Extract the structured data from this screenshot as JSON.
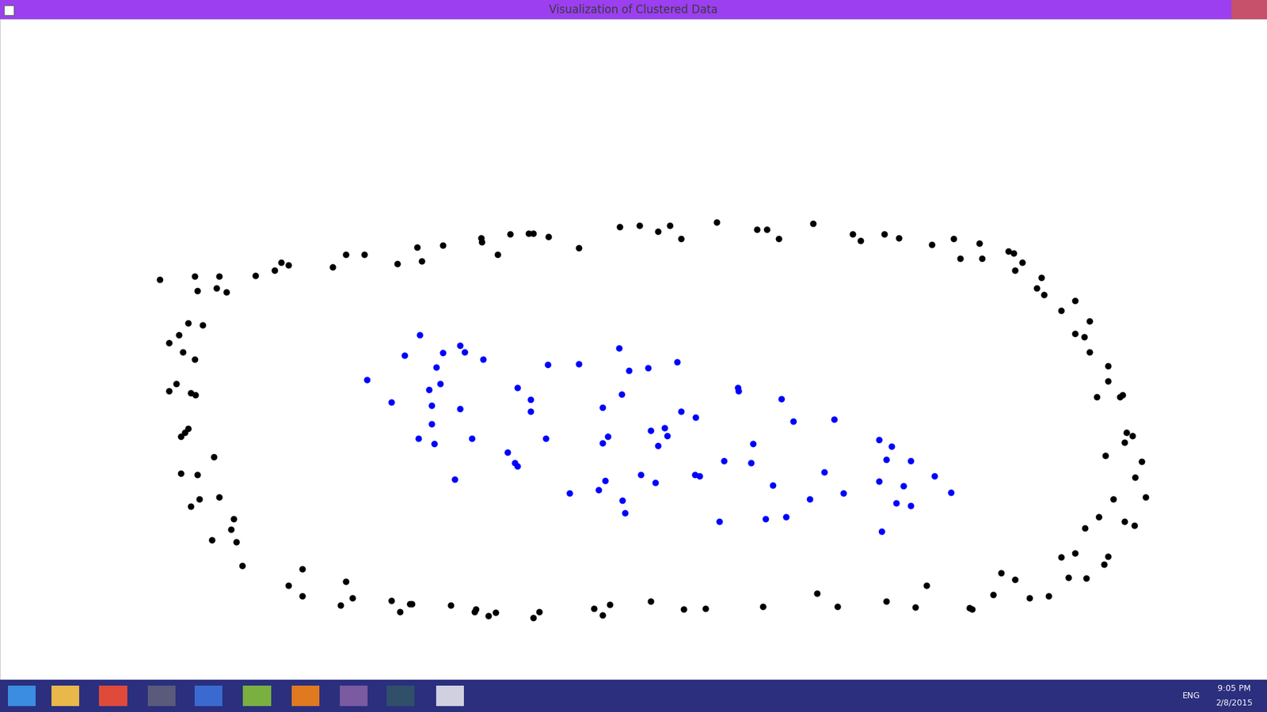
{
  "window": {
    "title": "Visualization of Clustered Data"
  },
  "taskbar": {
    "language": "ENG",
    "time": "9:05 PM",
    "date": "2/8/2015"
  },
  "chart_data": {
    "type": "scatter",
    "xlim": [
      0,
      1568
    ],
    "ylim": [
      842,
      24
    ],
    "tick_labels": false,
    "grid": false,
    "series": [
      {
        "color": "#000000",
        "marker": "o",
        "x": [
          198,
          241,
          271,
          244,
          268,
          280,
          316,
          340,
          348,
          357,
          412,
          428,
          451,
          492,
          516,
          522,
          548,
          595,
          596,
          616,
          631,
          654,
          660,
          679,
          716,
          767,
          791,
          814,
          829,
          843,
          887,
          937,
          949,
          964,
          1006,
          1055,
          1065,
          1094,
          1112,
          1153,
          1180,
          1188,
          1212,
          1215,
          1248,
          1254,
          1265,
          1256,
          1289,
          1283,
          1292,
          1330,
          1313,
          1348,
          1330,
          1342,
          1348,
          1371,
          1371,
          1357,
          1389,
          1386,
          1394,
          1392,
          1401,
          1368,
          1413,
          1405,
          1418,
          1378,
          1360,
          1392,
          1404,
          1343,
          1330,
          1313,
          1371,
          1366,
          1344,
          1322,
          1298,
          1274,
          1256,
          1239,
          1229,
          1147,
          1200,
          1203,
          1133,
          1097,
          1036,
          1011,
          944,
          873,
          846,
          805,
          755,
          735,
          746,
          667,
          660,
          613,
          604,
          589,
          587,
          558,
          510,
          507,
          484,
          495,
          428,
          436,
          421,
          374,
          357,
          374,
          300,
          292,
          262,
          286,
          289,
          271,
          247,
          236,
          224,
          244,
          265,
          224,
          229,
          233,
          218,
          209,
          236,
          242,
          241,
          226,
          209,
          221,
          233,
          251
        ],
        "values": [
          346,
          342,
          342,
          360,
          357,
          362,
          341,
          335,
          325,
          328,
          331,
          315,
          315,
          327,
          306,
          323,
          304,
          295,
          300,
          315,
          290,
          289,
          289,
          293,
          307,
          281,
          279,
          287,
          279,
          296,
          275,
          284,
          284,
          296,
          277,
          290,
          298,
          290,
          295,
          303,
          296,
          320,
          301,
          320,
          311,
          314,
          325,
          335,
          344,
          357,
          365,
          372,
          385,
          398,
          413,
          417,
          436,
          453,
          472,
          492,
          489,
          492,
          536,
          548,
          540,
          564,
          572,
          591,
          616,
          618,
          640,
          646,
          651,
          654,
          685,
          690,
          689,
          699,
          716,
          715,
          738,
          741,
          718,
          710,
          737,
          725,
          753,
          755,
          752,
          745,
          751,
          735,
          751,
          754,
          755,
          745,
          749,
          754,
          762,
          758,
          765,
          759,
          763,
          755,
          758,
          750,
          748,
          748,
          744,
          758,
          720,
          741,
          750,
          705,
          725,
          738,
          701,
          671,
          669,
          656,
          643,
          616,
          618,
          627,
          586,
          588,
          566,
          541,
          536,
          531,
          475,
          484,
          487,
          489,
          445,
          436,
          425,
          415,
          400,
          403
        ]
      },
      {
        "color": "#0000ff",
        "marker": "o",
        "x": [
          454,
          484,
          501,
          519,
          548,
          540,
          569,
          575,
          598,
          531,
          545,
          534,
          569,
          534,
          518,
          537,
          584,
          563,
          640,
          657,
          657,
          628,
          637,
          640,
          678,
          716,
          675,
          705,
          741,
          749,
          770,
          773,
          746,
          746,
          752,
          766,
          778,
          769,
          802,
          838,
          805,
          822,
          826,
          814,
          793,
          811,
          843,
          861,
          860,
          866,
          896,
          890,
          913,
          914,
          932,
          929,
          967,
          982,
          956,
          947,
          973,
          1002,
          1020,
          1032,
          1044,
          1088,
          1103,
          1097,
          1127,
          1088,
          1118,
          1109,
          1127,
          1091,
          1156,
          1177
        ],
        "values": [
          470,
          498,
          440,
          415,
          437,
          455,
          428,
          436,
          445,
          483,
          475,
          502,
          506,
          525,
          543,
          550,
          543,
          594,
          480,
          495,
          510,
          560,
          573,
          577,
          452,
          451,
          543,
          611,
          607,
          595,
          620,
          635,
          505,
          549,
          541,
          431,
          459,
          488,
          456,
          448,
          533,
          530,
          540,
          552,
          588,
          598,
          510,
          517,
          588,
          590,
          571,
          646,
          480,
          484,
          550,
          573,
          494,
          522,
          601,
          643,
          640,
          618,
          585,
          519,
          611,
          545,
          553,
          569,
          571,
          596,
          602,
          623,
          626,
          658,
          590,
          610
        ]
      }
    ]
  }
}
